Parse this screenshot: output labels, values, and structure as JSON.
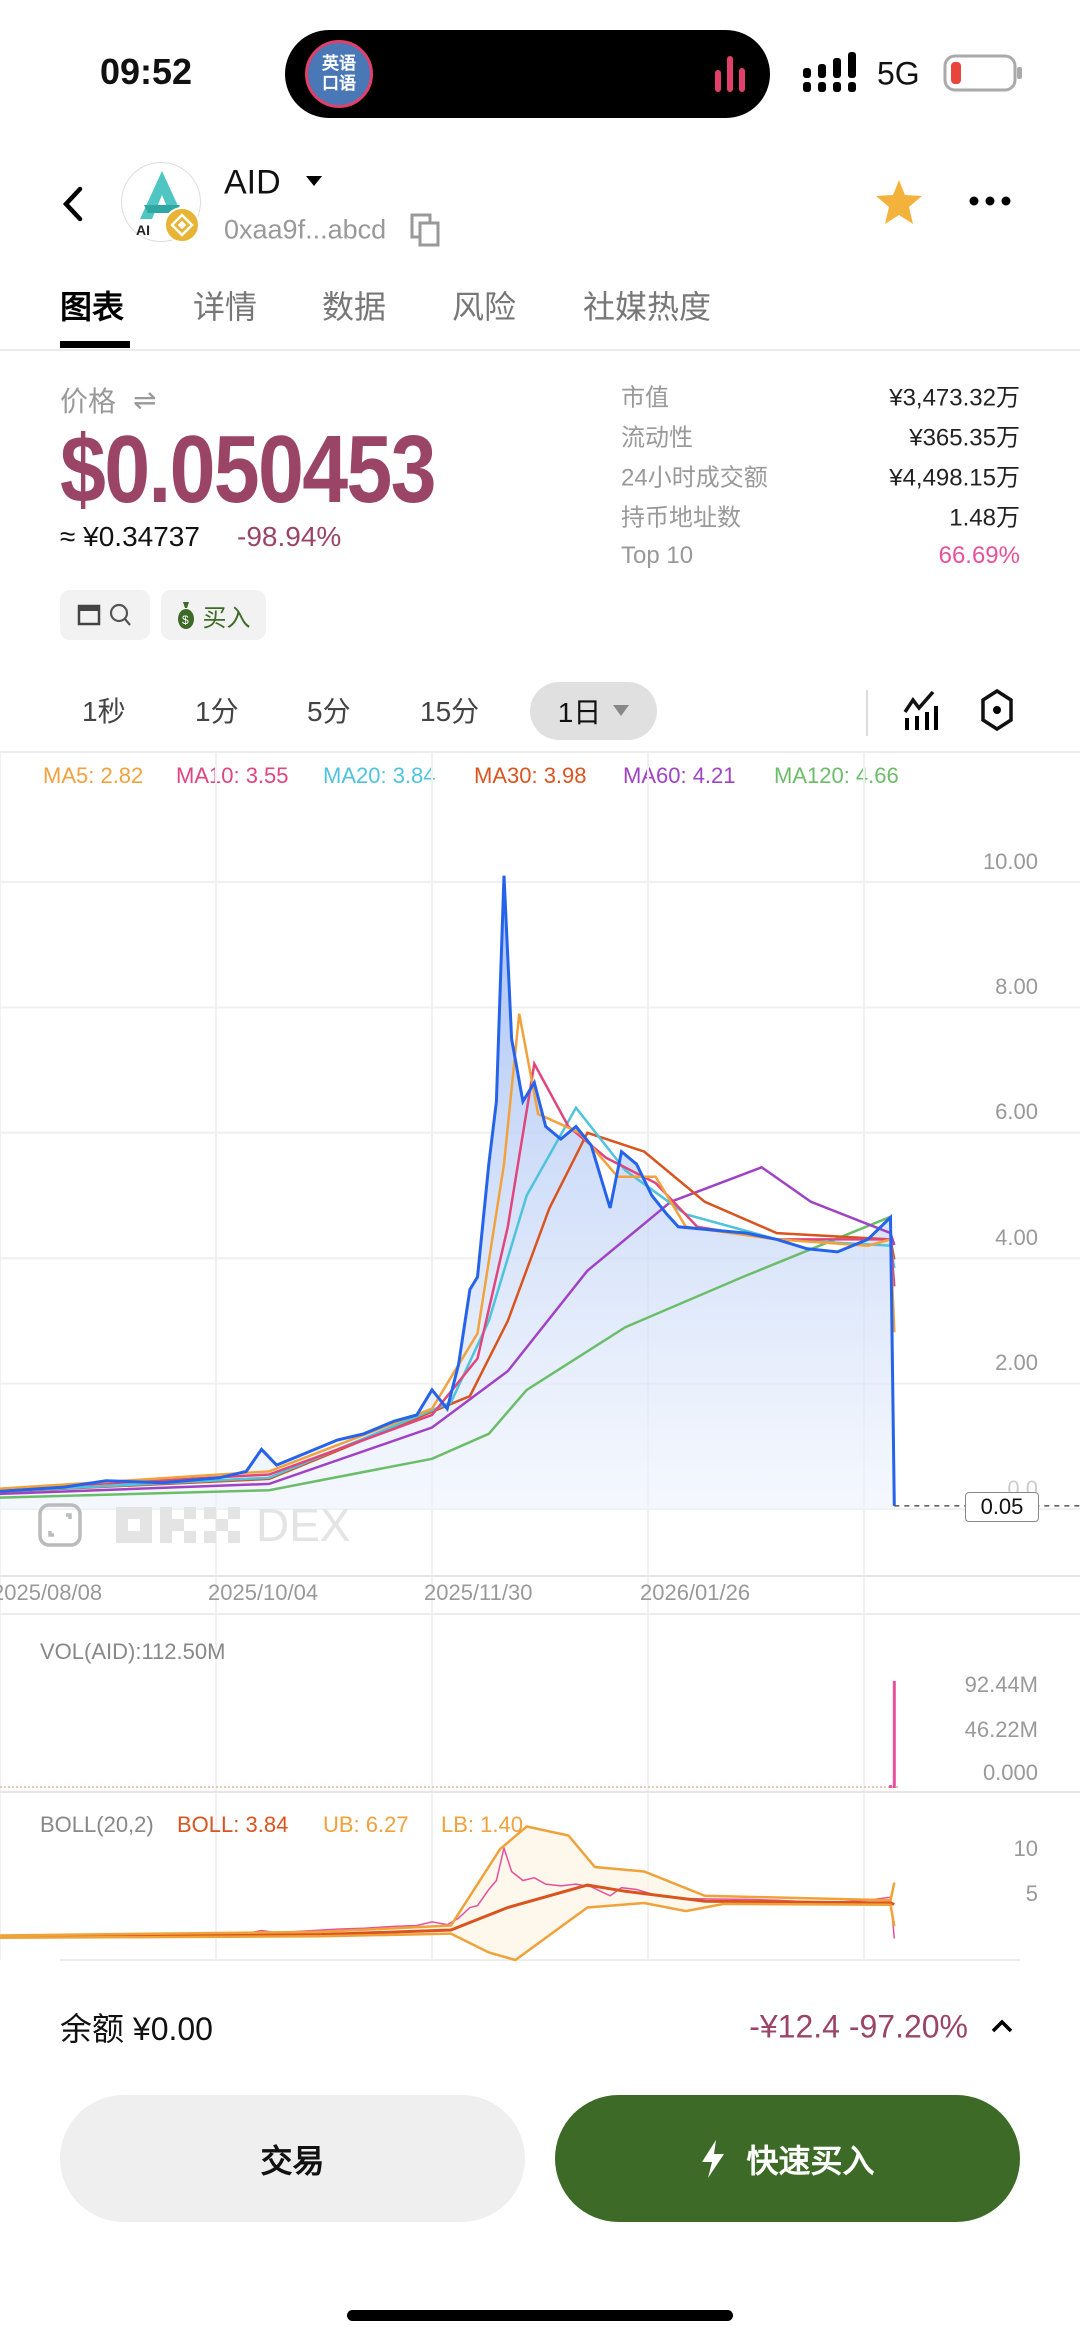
{
  "status_bar": {
    "time": "09:52",
    "island_app_text": [
      "英语",
      "口语"
    ],
    "network": "5G"
  },
  "header": {
    "token_name": "AID",
    "address": "0xaa9f...abcd",
    "logo_text": "AID"
  },
  "tabs": [
    {
      "label": "图表",
      "active": true
    },
    {
      "label": "详情"
    },
    {
      "label": "数据"
    },
    {
      "label": "风险"
    },
    {
      "label": "社媒热度"
    }
  ],
  "price": {
    "label": "价格",
    "value": "$0.050453",
    "cny": "≈ ¥0.34737",
    "change": "-98.94%",
    "color": "#9b4566"
  },
  "stats": [
    {
      "label": "市值",
      "value": "¥3,473.32万"
    },
    {
      "label": "流动性",
      "value": "¥365.35万"
    },
    {
      "label": "24小时成交额",
      "value": "¥4,498.15万"
    },
    {
      "label": "持币地址数",
      "value": "1.48万"
    },
    {
      "label": "Top 10",
      "value": "66.69%",
      "color": "#e7509c"
    }
  ],
  "actions": {
    "buy_label": "买入"
  },
  "timeframes": [
    "1秒",
    "1分",
    "5分",
    "15分",
    "1日"
  ],
  "timeframe_selected": "1日",
  "ma_legend": [
    {
      "label": "MA5: 2.82",
      "color": "#f2a23c"
    },
    {
      "label": "MA10: 3.55",
      "color": "#e0457b"
    },
    {
      "label": "MA20: 3.84",
      "color": "#4fc3dc"
    },
    {
      "label": "MA30: 3.98",
      "color": "#d9541e"
    },
    {
      "label": "MA60: 4.21",
      "color": "#a042c4"
    },
    {
      "label": "MA120: 4.66",
      "color": "#6cbd6a"
    }
  ],
  "watermark": "OKX DEX",
  "chart_data": [
    {
      "type": "line",
      "y_ticks": [
        "10.00",
        "8.00",
        "6.00",
        "4.00",
        "2.00",
        "0.0"
      ],
      "ylim": [
        0,
        10
      ],
      "x_ticks": [
        "2025/08/08",
        "2025/10/04",
        "2025/11/30",
        "2026/01/26"
      ],
      "current_price_label": "0.05",
      "grid": true,
      "price": [
        [
          "2025-07-20",
          0.25
        ],
        [
          "2025-08-08",
          0.28
        ],
        [
          "2025-08-25",
          0.35
        ],
        [
          "2025-09-05",
          0.45
        ],
        [
          "2025-09-20",
          0.42
        ],
        [
          "2025-10-05",
          0.5
        ],
        [
          "2025-10-12",
          0.6
        ],
        [
          "2025-10-16",
          0.95
        ],
        [
          "2025-10-20",
          0.7
        ],
        [
          "2025-10-28",
          0.9
        ],
        [
          "2025-11-05",
          1.1
        ],
        [
          "2025-11-12",
          1.2
        ],
        [
          "2025-11-20",
          1.4
        ],
        [
          "2025-11-26",
          1.5
        ],
        [
          "2025-11-30",
          1.9
        ],
        [
          "2025-12-04",
          1.6
        ],
        [
          "2025-12-07",
          2.3
        ],
        [
          "2025-12-10",
          3.5
        ],
        [
          "2025-12-12",
          3.7
        ],
        [
          "2025-12-15",
          5.5
        ],
        [
          "2025-12-17",
          6.5
        ],
        [
          "2025-12-19",
          10.1
        ],
        [
          "2025-12-21",
          7.5
        ],
        [
          "2025-12-24",
          6.5
        ],
        [
          "2025-12-27",
          6.8
        ],
        [
          "2025-12-30",
          6.1
        ],
        [
          "2026-01-03",
          5.9
        ],
        [
          "2026-01-07",
          6.1
        ],
        [
          "2026-01-11",
          5.8
        ],
        [
          "2026-01-14",
          5.2
        ],
        [
          "2026-01-16",
          4.8
        ],
        [
          "2026-01-19",
          5.7
        ],
        [
          "2026-01-23",
          5.5
        ],
        [
          "2026-01-27",
          5.0
        ],
        [
          "2026-01-31",
          4.7
        ],
        [
          "2026-02-03",
          4.5
        ],
        [
          "2026-02-12",
          4.45
        ],
        [
          "2026-02-21",
          4.4
        ],
        [
          "2026-03-01",
          4.3
        ],
        [
          "2026-03-09",
          4.15
        ],
        [
          "2026-03-17",
          4.1
        ],
        [
          "2026-03-25",
          4.3
        ],
        [
          "2026-03-31",
          4.65
        ],
        [
          "2026-04-01",
          0.05
        ]
      ],
      "series": [
        {
          "name": "MA5",
          "color": "#f2a23c",
          "points": [
            [
              "2025-07-20",
              0.25
            ],
            [
              "2025-10-18",
              0.6
            ],
            [
              "2025-11-30",
              1.6
            ],
            [
              "2025-12-12",
              2.8
            ],
            [
              "2025-12-19",
              5.5
            ],
            [
              "2025-12-23",
              7.9
            ],
            [
              "2025-12-28",
              6.3
            ],
            [
              "2026-01-08",
              6.0
            ],
            [
              "2026-01-18",
              5.3
            ],
            [
              "2026-01-28",
              5.3
            ],
            [
              "2026-02-05",
              4.5
            ],
            [
              "2026-03-01",
              4.3
            ],
            [
              "2026-03-25",
              4.2
            ],
            [
              "2026-03-31",
              4.3
            ],
            [
              "2026-04-01",
              2.82
            ]
          ]
        },
        {
          "name": "MA10",
          "color": "#e0457b",
          "points": [
            [
              "2025-07-20",
              0.25
            ],
            [
              "2025-10-18",
              0.55
            ],
            [
              "2025-11-30",
              1.5
            ],
            [
              "2025-12-12",
              2.4
            ],
            [
              "2025-12-20",
              4.5
            ],
            [
              "2025-12-27",
              7.1
            ],
            [
              "2026-01-05",
              6.1
            ],
            [
              "2026-01-15",
              5.6
            ],
            [
              "2026-01-28",
              5.2
            ],
            [
              "2026-02-08",
              4.5
            ],
            [
              "2026-03-01",
              4.3
            ],
            [
              "2026-03-31",
              4.3
            ],
            [
              "2026-04-01",
              3.55
            ]
          ]
        },
        {
          "name": "MA20",
          "color": "#4fc3dc",
          "points": [
            [
              "2025-07-20",
              0.22
            ],
            [
              "2025-10-18",
              0.5
            ],
            [
              "2025-12-05",
              1.7
            ],
            [
              "2025-12-15",
              3.0
            ],
            [
              "2025-12-25",
              5.0
            ],
            [
              "2026-01-07",
              6.4
            ],
            [
              "2026-01-20",
              5.4
            ],
            [
              "2026-02-05",
              4.7
            ],
            [
              "2026-03-01",
              4.3
            ],
            [
              "2026-03-31",
              4.2
            ],
            [
              "2026-04-01",
              3.84
            ]
          ]
        },
        {
          "name": "MA30",
          "color": "#d9541e",
          "points": [
            [
              "2025-07-20",
              0.22
            ],
            [
              "2025-10-18",
              0.48
            ],
            [
              "2025-12-10",
              1.8
            ],
            [
              "2025-12-20",
              3.0
            ],
            [
              "2025-12-31",
              4.8
            ],
            [
              "2026-01-10",
              6.0
            ],
            [
              "2026-01-25",
              5.7
            ],
            [
              "2026-02-10",
              4.9
            ],
            [
              "2026-03-01",
              4.4
            ],
            [
              "2026-03-31",
              4.3
            ],
            [
              "2026-04-01",
              3.98
            ]
          ]
        },
        {
          "name": "MA60",
          "color": "#a042c4",
          "points": [
            [
              "2025-07-20",
              0.2
            ],
            [
              "2025-10-18",
              0.4
            ],
            [
              "2025-11-30",
              1.3
            ],
            [
              "2025-12-20",
              2.2
            ],
            [
              "2026-01-10",
              3.8
            ],
            [
              "2026-02-01",
              4.9
            ],
            [
              "2026-02-25",
              5.45
            ],
            [
              "2026-03-10",
              4.9
            ],
            [
              "2026-03-31",
              4.4
            ],
            [
              "2026-04-01",
              4.21
            ]
          ]
        },
        {
          "name": "MA120",
          "color": "#6cbd6a",
          "points": [
            [
              "2025-07-20",
              0.15
            ],
            [
              "2025-10-18",
              0.3
            ],
            [
              "2025-11-30",
              0.8
            ],
            [
              "2025-12-15",
              1.2
            ],
            [
              "2025-12-25",
              1.9
            ],
            [
              "2026-01-20",
              2.9
            ],
            [
              "2026-02-20",
              3.7
            ],
            [
              "2026-03-31",
              4.66
            ]
          ]
        }
      ]
    },
    {
      "type": "bar",
      "title": "VOL(AID):112.50M",
      "y_ticks": [
        "92.44M",
        "46.22M",
        "0.000"
      ],
      "unit": "M",
      "values": [
        [
          "2026-03-31",
          3
        ],
        [
          "2026-04-01",
          112.5
        ]
      ],
      "color": "#e7509c"
    },
    {
      "type": "line",
      "title": "BOLL(20,2)",
      "legend": [
        {
          "label": "BOLL: 3.84",
          "color": "#d9541e"
        },
        {
          "label": "UB: 6.27",
          "color": "#f0a23a"
        },
        {
          "label": "LB: 1.40",
          "color": "#f0a23a"
        }
      ],
      "y_ticks": [
        "10",
        "5"
      ],
      "series": [
        {
          "name": "BOLL",
          "color": "#d9541e",
          "points": [
            [
              "2025-07-20",
              0.2
            ],
            [
              "2025-11-01",
              0.5
            ],
            [
              "2025-12-05",
              1.0
            ],
            [
              "2025-12-20",
              3.5
            ],
            [
              "2026-01-10",
              6.0
            ],
            [
              "2026-01-20",
              5.3
            ],
            [
              "2026-02-10",
              4.2
            ],
            [
              "2026-03-31",
              4.0
            ],
            [
              "2026-04-01",
              3.84
            ]
          ]
        },
        {
          "name": "UB",
          "color": "#f0a23a",
          "points": [
            [
              "2025-07-20",
              0.3
            ],
            [
              "2025-11-01",
              0.8
            ],
            [
              "2025-12-05",
              1.5
            ],
            [
              "2025-12-18",
              10
            ],
            [
              "2025-12-25",
              12.5
            ],
            [
              "2026-01-05",
              11.5
            ],
            [
              "2026-01-12",
              8
            ],
            [
              "2026-01-25",
              7.5
            ],
            [
              "2026-02-10",
              4.8
            ],
            [
              "2026-03-31",
              4.3
            ],
            [
              "2026-04-01",
              6.27
            ]
          ]
        },
        {
          "name": "LB",
          "color": "#f0a23a",
          "points": [
            [
              "2025-07-20",
              0.1
            ],
            [
              "2025-11-01",
              0.3
            ],
            [
              "2025-12-05",
              0.6
            ],
            [
              "2025-12-15",
              -1.5
            ],
            [
              "2025-12-22",
              -2.5
            ],
            [
              "2026-01-10",
              3.5
            ],
            [
              "2026-01-25",
              4.0
            ],
            [
              "2026-02-05",
              3.1
            ],
            [
              "2026-02-15",
              3.9
            ],
            [
              "2026-03-31",
              3.8
            ],
            [
              "2026-04-01",
              1.4
            ]
          ]
        }
      ]
    }
  ],
  "footer": {
    "balance": "余额 ¥0.00",
    "pnl": "-¥12.4 -97.20%",
    "trade_label": "交易",
    "quick_buy_label": "快速买入",
    "quick_buy_color": "#3d6b27"
  }
}
